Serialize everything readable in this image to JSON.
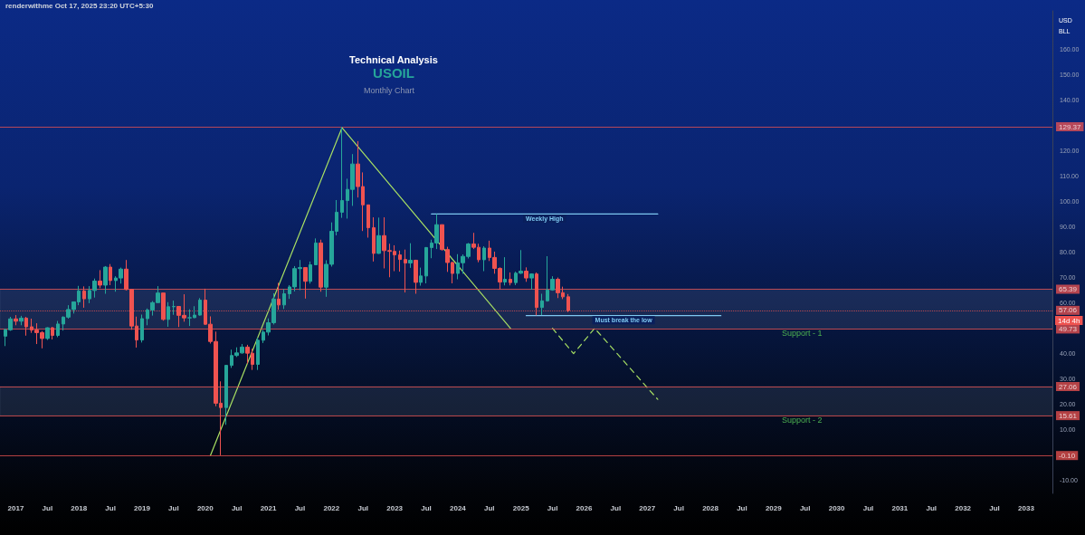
{
  "chart_data": {
    "type": "candlestick",
    "title": "Technical Analysis",
    "subtitle": "USOIL",
    "annotations": [
      "renderwithme Oct 17, 2025 23:20 UTC+5:30",
      "Monthly Chart",
      "14d 4h",
      "USD",
      "BLL"
    ],
    "x": [
      "2016-11",
      "2016-12",
      "2017-01",
      "2017-02",
      "2017-03",
      "2017-04",
      "2017-05",
      "2017-06",
      "2017-07",
      "2017-08",
      "2017-09",
      "2017-10",
      "2017-11",
      "2017-12",
      "2018-01",
      "2018-02",
      "2018-03",
      "2018-04",
      "2018-05",
      "2018-06",
      "2018-07",
      "2018-08",
      "2018-09",
      "2018-10",
      "2018-11",
      "2018-12",
      "2019-01",
      "2019-02",
      "2019-03",
      "2019-04",
      "2019-05",
      "2019-06",
      "2019-07",
      "2019-08",
      "2019-09",
      "2019-10",
      "2019-11",
      "2019-12",
      "2020-01",
      "2020-02",
      "2020-03",
      "2020-04",
      "2020-05",
      "2020-06",
      "2020-07",
      "2020-08",
      "2020-09",
      "2020-10",
      "2020-11",
      "2020-12",
      "2021-01",
      "2021-02",
      "2021-03",
      "2021-04",
      "2021-05",
      "2021-06",
      "2021-07",
      "2021-08",
      "2021-09",
      "2021-10",
      "2021-11",
      "2021-12",
      "2022-01",
      "2022-02",
      "2022-03",
      "2022-04",
      "2022-05",
      "2022-06",
      "2022-07",
      "2022-08",
      "2022-09",
      "2022-10",
      "2022-11",
      "2022-12",
      "2023-01",
      "2023-02",
      "2023-03",
      "2023-04",
      "2023-05",
      "2023-06",
      "2023-07",
      "2023-08",
      "2023-09",
      "2023-10",
      "2023-11",
      "2023-12",
      "2024-01",
      "2024-02",
      "2024-03",
      "2024-04",
      "2024-05",
      "2024-06",
      "2024-07",
      "2024-08",
      "2024-09",
      "2024-10",
      "2024-11",
      "2024-12",
      "2025-01",
      "2025-02",
      "2025-03",
      "2025-04",
      "2025-05",
      "2025-06",
      "2025-07",
      "2025-08",
      "2025-09",
      "2025-10"
    ],
    "ohlc": [
      [
        46.9,
        49.9,
        43.0,
        49.4
      ],
      [
        49.4,
        54.5,
        49.0,
        53.7
      ],
      [
        53.7,
        55.2,
        51.2,
        52.8
      ],
      [
        52.8,
        54.9,
        51.2,
        54.0
      ],
      [
        54.0,
        54.5,
        47.1,
        50.6
      ],
      [
        50.6,
        53.8,
        48.2,
        49.3
      ],
      [
        49.3,
        52.0,
        43.8,
        48.3
      ],
      [
        48.3,
        48.9,
        42.1,
        46.0
      ],
      [
        46.0,
        50.4,
        45.4,
        50.2
      ],
      [
        50.2,
        50.5,
        45.6,
        47.2
      ],
      [
        47.2,
        52.9,
        46.5,
        51.7
      ],
      [
        51.7,
        54.7,
        49.1,
        54.4
      ],
      [
        54.4,
        59.1,
        53.8,
        57.4
      ],
      [
        57.4,
        60.5,
        55.8,
        60.4
      ],
      [
        60.4,
        66.7,
        59.1,
        64.7
      ],
      [
        64.7,
        66.5,
        58.1,
        61.6
      ],
      [
        61.6,
        66.6,
        59.9,
        64.9
      ],
      [
        64.9,
        69.6,
        62.1,
        68.6
      ],
      [
        68.6,
        72.9,
        65.8,
        67.0
      ],
      [
        67.0,
        74.5,
        63.6,
        74.1
      ],
      [
        74.1,
        75.3,
        67.0,
        68.8
      ],
      [
        68.8,
        70.5,
        64.4,
        69.8
      ],
      [
        69.8,
        73.9,
        67.6,
        73.3
      ],
      [
        73.3,
        76.9,
        64.9,
        65.3
      ],
      [
        65.3,
        65.4,
        49.4,
        50.9
      ],
      [
        50.9,
        54.6,
        42.4,
        45.4
      ],
      [
        45.4,
        55.4,
        44.4,
        53.8
      ],
      [
        53.8,
        57.8,
        51.2,
        57.2
      ],
      [
        57.2,
        60.7,
        55.0,
        60.1
      ],
      [
        60.1,
        66.6,
        60.1,
        63.9
      ],
      [
        63.9,
        63.9,
        53.0,
        53.5
      ],
      [
        53.5,
        60.3,
        50.6,
        58.5
      ],
      [
        58.5,
        60.9,
        55.3,
        58.6
      ],
      [
        58.6,
        58.8,
        50.5,
        55.1
      ],
      [
        55.1,
        63.4,
        52.6,
        54.1
      ],
      [
        54.1,
        57.5,
        50.9,
        54.2
      ],
      [
        54.2,
        58.7,
        54.0,
        55.2
      ],
      [
        55.2,
        61.9,
        55.0,
        61.1
      ],
      [
        61.1,
        65.6,
        51.3,
        51.6
      ],
      [
        51.6,
        54.7,
        44.0,
        44.8
      ],
      [
        44.8,
        48.7,
        19.3,
        20.5
      ],
      [
        20.5,
        29.1,
        0,
        18.8
      ],
      [
        18.8,
        35.4,
        12.0,
        35.4
      ],
      [
        35.4,
        41.6,
        34.4,
        39.3
      ],
      [
        39.3,
        42.5,
        38.7,
        40.3
      ],
      [
        40.3,
        43.8,
        40.0,
        42.6
      ],
      [
        42.6,
        43.5,
        36.1,
        40.2
      ],
      [
        40.2,
        41.9,
        33.6,
        35.8
      ],
      [
        35.8,
        46.3,
        33.6,
        45.3
      ],
      [
        45.3,
        49.4,
        44.2,
        48.5
      ],
      [
        48.5,
        53.9,
        47.2,
        52.2
      ],
      [
        52.2,
        63.8,
        51.5,
        61.5
      ],
      [
        61.5,
        67.9,
        57.3,
        59.2
      ],
      [
        59.2,
        65.5,
        57.6,
        63.6
      ],
      [
        63.6,
        67.0,
        61.6,
        66.3
      ],
      [
        66.3,
        74.5,
        64.5,
        73.5
      ],
      [
        73.5,
        76.9,
        65.0,
        73.9
      ],
      [
        73.9,
        73.9,
        61.7,
        68.5
      ],
      [
        68.5,
        76.3,
        67.6,
        75.0
      ],
      [
        75.0,
        85.4,
        74.9,
        83.6
      ],
      [
        83.6,
        84.9,
        64.4,
        66.2
      ],
      [
        66.2,
        76.8,
        62.4,
        75.2
      ],
      [
        75.2,
        91.7,
        74.3,
        88.2
      ],
      [
        88.2,
        100.5,
        86.6,
        95.7
      ],
      [
        95.7,
        129.37,
        93.5,
        100.3
      ],
      [
        100.3,
        108.9,
        93.2,
        104.7
      ],
      [
        104.7,
        118.6,
        98.2,
        114.7
      ],
      [
        114.7,
        123.7,
        101.5,
        105.8
      ],
      [
        105.8,
        111.4,
        88.3,
        98.6
      ],
      [
        98.6,
        98.6,
        85.7,
        89.6
      ],
      [
        89.6,
        93.7,
        76.3,
        79.5
      ],
      [
        79.5,
        93.6,
        79.3,
        86.5
      ],
      [
        86.5,
        93.7,
        73.6,
        80.6
      ],
      [
        80.6,
        83.3,
        70.1,
        80.3
      ],
      [
        80.3,
        82.7,
        72.5,
        78.9
      ],
      [
        78.9,
        80.6,
        72.3,
        77.1
      ],
      [
        77.1,
        81.0,
        64.1,
        75.7
      ],
      [
        75.7,
        83.5,
        73.8,
        76.8
      ],
      [
        76.8,
        77.0,
        63.6,
        68.1
      ],
      [
        68.1,
        73.9,
        66.8,
        70.6
      ],
      [
        70.6,
        82.0,
        67.7,
        81.8
      ],
      [
        81.8,
        84.9,
        77.6,
        83.6
      ],
      [
        83.6,
        95.0,
        81.2,
        90.8
      ],
      [
        90.8,
        90.9,
        80.6,
        81.0
      ],
      [
        81.0,
        82.1,
        72.2,
        75.9
      ],
      [
        75.9,
        76.2,
        67.7,
        71.6
      ],
      [
        71.6,
        79.2,
        69.3,
        75.8
      ],
      [
        75.8,
        79.1,
        71.5,
        78.3
      ],
      [
        78.3,
        83.6,
        77.5,
        83.2
      ],
      [
        83.2,
        87.6,
        81.2,
        81.9
      ],
      [
        81.9,
        83.3,
        76.0,
        77.0
      ],
      [
        77.0,
        82.3,
        72.5,
        81.6
      ],
      [
        81.6,
        84.5,
        76.5,
        77.9
      ],
      [
        77.9,
        80.2,
        71.5,
        73.6
      ],
      [
        73.6,
        74.0,
        65.3,
        68.2
      ],
      [
        68.2,
        78.0,
        66.9,
        69.3
      ],
      [
        69.3,
        72.0,
        66.9,
        68.0
      ],
      [
        68.0,
        72.3,
        67.0,
        71.7
      ],
      [
        71.7,
        80.8,
        71.4,
        72.5
      ],
      [
        72.5,
        74.0,
        68.3,
        69.8
      ],
      [
        69.8,
        71.6,
        65.2,
        71.4
      ],
      [
        71.4,
        72.0,
        55.1,
        58.2
      ],
      [
        58.2,
        63.6,
        55.2,
        60.8
      ],
      [
        60.8,
        78.4,
        60.5,
        65.1
      ],
      [
        65.1,
        70.5,
        64.8,
        69.3
      ],
      [
        69.3,
        70.0,
        61.9,
        64.0
      ],
      [
        64.0,
        66.4,
        61.5,
        62.4
      ],
      [
        62.4,
        63.5,
        56.4,
        57.0
      ]
    ],
    "colors": [
      "#26a69a",
      "#26a69a",
      "#ef5350",
      "#26a69a",
      "#ef5350",
      "#ef5350",
      "#ef5350",
      "#ef5350",
      "#26a69a",
      "#ef5350",
      "#26a69a",
      "#26a69a",
      "#26a69a",
      "#26a69a",
      "#26a69a",
      "#ef5350",
      "#26a69a",
      "#26a69a",
      "#ef5350",
      "#26a69a",
      "#ef5350",
      "#26a69a",
      "#26a69a",
      "#ef5350",
      "#ef5350",
      "#ef5350",
      "#26a69a",
      "#26a69a",
      "#26a69a",
      "#26a69a",
      "#ef5350",
      "#26a69a",
      "#26a69a",
      "#ef5350",
      "#ef5350",
      "#26a69a",
      "#26a69a",
      "#26a69a",
      "#ef5350",
      "#ef5350",
      "#ef5350",
      "#ef5350",
      "#26a69a",
      "#26a69a",
      "#26a69a",
      "#26a69a",
      "#ef5350",
      "#ef5350",
      "#26a69a",
      "#26a69a",
      "#26a69a",
      "#26a69a",
      "#ef5350",
      "#26a69a",
      "#26a69a",
      "#26a69a",
      "#26a69a",
      "#ef5350",
      "#26a69a",
      "#26a69a",
      "#ef5350",
      "#26a69a",
      "#26a69a",
      "#26a69a",
      "#26a69a",
      "#26a69a",
      "#26a69a",
      "#ef5350",
      "#ef5350",
      "#ef5350",
      "#ef5350",
      "#26a69a",
      "#ef5350",
      "#ef5350",
      "#ef5350",
      "#ef5350",
      "#ef5350",
      "#26a69a",
      "#ef5350",
      "#26a69a",
      "#26a69a",
      "#26a69a",
      "#26a69a",
      "#ef5350",
      "#ef5350",
      "#ef5350",
      "#26a69a",
      "#26a69a",
      "#26a69a",
      "#ef5350",
      "#ef5350",
      "#26a69a",
      "#ef5350",
      "#ef5350",
      "#ef5350",
      "#26a69a",
      "#ef5350",
      "#26a69a",
      "#26a69a",
      "#ef5350",
      "#26a69a",
      "#ef5350",
      "#26a69a",
      "#26a69a",
      "#26a69a",
      "#ef5350",
      "#ef5350",
      "#ef5350"
    ],
    "series": [
      {
        "type": "line",
        "color": "#a8e063",
        "x": [
          "2020-02",
          "2022-03",
          "2024-11"
        ],
        "values": [
          0,
          129,
          50
        ]
      },
      {
        "type": "line",
        "color": "#a8e063",
        "line_style": "dashed",
        "x": [
          "2025-07",
          "2025-11",
          "2026-03",
          "2027-03"
        ],
        "values": [
          50,
          40,
          50,
          22
        ]
      },
      {
        "type": "line",
        "name": "Weekly High",
        "color": "#7ec8f0",
        "x": [
          "2023-08",
          "2027-03"
        ],
        "values": [
          95,
          95
        ]
      },
      {
        "type": "line",
        "name": "Must break the low",
        "color": "#7ec8f0",
        "x": [
          "2025-02",
          "2028-03"
        ],
        "values": [
          55,
          55
        ]
      }
    ],
    "marker": "none",
    "ref_lines": [
      {
        "axis": "y",
        "value": 129.37,
        "label": "129.37",
        "color": "#ef5350"
      },
      {
        "axis": "y",
        "value": 65.39,
        "label": "65.39",
        "color": "#ef5350"
      },
      {
        "axis": "y",
        "value": 57.06,
        "label": "57.06",
        "color": "#ef5350",
        "line_style": "dotted"
      },
      {
        "axis": "y",
        "value": 49.73,
        "label": "49.73",
        "color": "#ef5350"
      },
      {
        "axis": "y",
        "value": 27.06,
        "label": "27.06",
        "color": "#ef5350"
      },
      {
        "axis": "y",
        "value": 15.61,
        "label": "15.61",
        "color": "#ef5350"
      },
      {
        "axis": "y",
        "value": -0.1,
        "label": "-0.10",
        "color": "#ef5350"
      }
    ],
    "bands": [
      {
        "axis": "y",
        "from": 49.73,
        "to": 65.39,
        "label": "Support - 1",
        "color": "#8a9ab8"
      },
      {
        "axis": "y",
        "from": 15.61,
        "to": 27.06,
        "label": "Support - 2",
        "color": "#8a9ab8"
      }
    ],
    "xlim": [
      "2016-10",
      "2033-06"
    ],
    "xticks": [
      {
        "value": "2017-01",
        "label": "2017"
      },
      {
        "value": "2017-07",
        "label": "Jul"
      },
      {
        "value": "2018-01",
        "label": "2018"
      },
      {
        "value": "2018-07",
        "label": "Jul"
      },
      {
        "value": "2019-01",
        "label": "2019"
      },
      {
        "value": "2019-07",
        "label": "Jul"
      },
      {
        "value": "2020-01",
        "label": "2020"
      },
      {
        "value": "2020-07",
        "label": "Jul"
      },
      {
        "value": "2021-01",
        "label": "2021"
      },
      {
        "value": "2021-07",
        "label": "Jul"
      },
      {
        "value": "2022-01",
        "label": "2022"
      },
      {
        "value": "2022-07",
        "label": "Jul"
      },
      {
        "value": "2023-01",
        "label": "2023"
      },
      {
        "value": "2023-07",
        "label": "Jul"
      },
      {
        "value": "2024-01",
        "label": "2024"
      },
      {
        "value": "2024-07",
        "label": "Jul"
      },
      {
        "value": "2025-01",
        "label": "2025"
      },
      {
        "value": "2025-07",
        "label": "Jul"
      },
      {
        "value": "2026-01",
        "label": "2026"
      },
      {
        "value": "2026-07",
        "label": "Jul"
      },
      {
        "value": "2027-01",
        "label": "2027"
      },
      {
        "value": "2027-07",
        "label": "Jul"
      },
      {
        "value": "2028-01",
        "label": "2028"
      },
      {
        "value": "2028-07",
        "label": "Jul"
      },
      {
        "value": "2029-01",
        "label": "2029"
      },
      {
        "value": "2029-07",
        "label": "Jul"
      },
      {
        "value": "2030-01",
        "label": "2030"
      },
      {
        "value": "2030-07",
        "label": "Jul"
      },
      {
        "value": "2031-01",
        "label": "2031"
      },
      {
        "value": "2031-07",
        "label": "Jul"
      },
      {
        "value": "2032-01",
        "label": "2032"
      },
      {
        "value": "2032-07",
        "label": "Jul"
      },
      {
        "value": "2033-01",
        "label": "2033"
      }
    ],
    "ylim": [
      -15,
      175
    ],
    "yticks": [
      {
        "value": -10,
        "label": "-10.00"
      },
      {
        "value": 10,
        "label": "10.00"
      },
      {
        "value": 20,
        "label": "20.00"
      },
      {
        "value": 30,
        "label": "30.00"
      },
      {
        "value": 40,
        "label": "40.00"
      },
      {
        "value": 60,
        "label": "60.00"
      },
      {
        "value": 70,
        "label": "70.00"
      },
      {
        "value": 80,
        "label": "80.00"
      },
      {
        "value": 90,
        "label": "90.00"
      },
      {
        "value": 100,
        "label": "100.00"
      },
      {
        "value": 110,
        "label": "110.00"
      },
      {
        "value": 120,
        "label": "120.00"
      },
      {
        "value": 140,
        "label": "140.00"
      },
      {
        "value": 150,
        "label": "150.00"
      },
      {
        "value": 160,
        "label": "160.00"
      }
    ],
    "grid": false,
    "legend": false
  }
}
